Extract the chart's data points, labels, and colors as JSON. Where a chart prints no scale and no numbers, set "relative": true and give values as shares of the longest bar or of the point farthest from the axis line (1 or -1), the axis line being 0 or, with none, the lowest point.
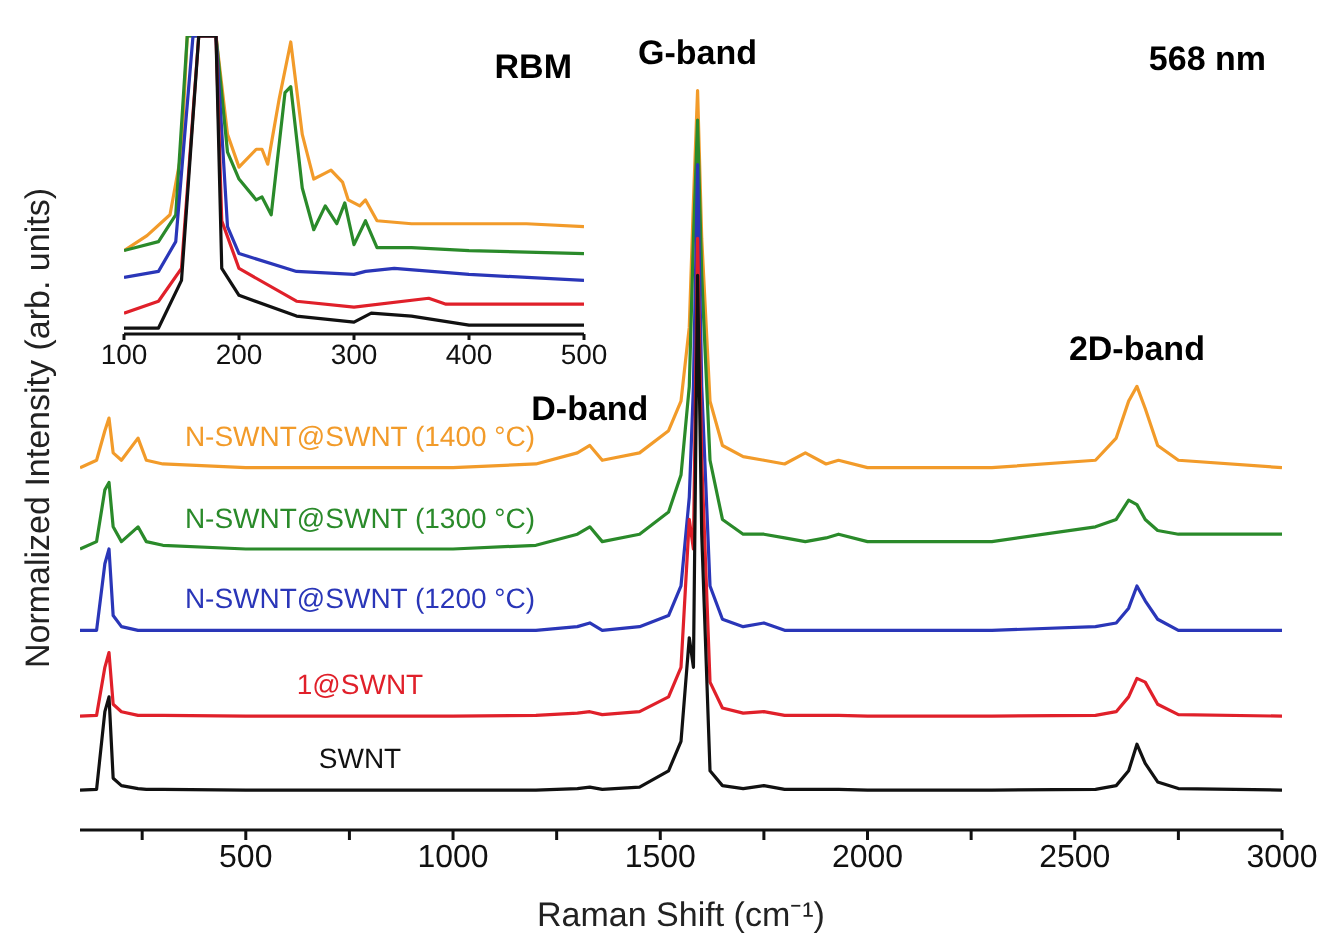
{
  "chart_data": [
    {
      "type": "line",
      "relative": true,
      "xlabel": "Raman Shift (cm⁻¹)",
      "ylabel": "Normalized Intensity (arb. units)",
      "xlim": [
        100,
        3000
      ],
      "xticks": [
        {
          "value": 250,
          "label": null
        },
        500,
        {
          "value": 750,
          "label": null
        },
        1000,
        {
          "value": 1250,
          "label": null
        },
        1500,
        {
          "value": 1750,
          "label": null
        },
        2000,
        {
          "value": 2250,
          "label": null
        },
        2500,
        {
          "value": 2750,
          "label": null
        },
        3000
      ],
      "grid": false,
      "legend": false,
      "annotations": [
        {
          "text": "G-band",
          "x": 1590,
          "y": 1.0
        },
        {
          "text": "D-band",
          "x": 1330,
          "y": 0.52
        },
        {
          "text": "2D-band",
          "x": 2650,
          "y": 0.6
        },
        "568 nm"
      ],
      "x": [
        100,
        140,
        160,
        170,
        180,
        200,
        240,
        260,
        300,
        500,
        1000,
        1200,
        1300,
        1330,
        1360,
        1450,
        1520,
        1550,
        1570,
        1580,
        1590,
        1600,
        1620,
        1650,
        1700,
        1750,
        1800,
        1850,
        1900,
        1930,
        2000,
        2300,
        2550,
        2600,
        2630,
        2650,
        2670,
        2700,
        2750,
        3000
      ],
      "series": [
        {
          "name": "N-SWNT@SWNT (1400 °C)",
          "color": "#f29b2a",
          "values": [
            0.49,
            0.5,
            0.54,
            0.557,
            0.51,
            0.5,
            0.53,
            0.5,
            0.495,
            0.49,
            0.49,
            0.495,
            0.51,
            0.52,
            0.5,
            0.51,
            0.54,
            0.58,
            0.68,
            0.85,
            1.0,
            0.8,
            0.58,
            0.52,
            0.505,
            0.5,
            0.495,
            0.51,
            0.495,
            0.5,
            0.49,
            0.49,
            0.5,
            0.53,
            0.58,
            0.6,
            0.57,
            0.52,
            0.5,
            0.49
          ]
        },
        {
          "name": "N-SWNT@SWNT (1300 °C)",
          "color": "#2a8a2a",
          "values": [
            0.38,
            0.39,
            0.46,
            0.47,
            0.41,
            0.39,
            0.41,
            0.39,
            0.385,
            0.38,
            0.38,
            0.385,
            0.4,
            0.41,
            0.39,
            0.4,
            0.43,
            0.48,
            0.6,
            0.8,
            0.96,
            0.75,
            0.5,
            0.42,
            0.4,
            0.4,
            0.395,
            0.39,
            0.395,
            0.4,
            0.39,
            0.39,
            0.41,
            0.42,
            0.446,
            0.44,
            0.42,
            0.405,
            0.4,
            0.4
          ]
        },
        {
          "name": "N-SWNT@SWNT (1200 °C)",
          "color": "#2a36b8",
          "values": [
            0.27,
            0.27,
            0.36,
            0.38,
            0.29,
            0.275,
            0.27,
            0.27,
            0.27,
            0.27,
            0.27,
            0.27,
            0.275,
            0.28,
            0.27,
            0.275,
            0.29,
            0.33,
            0.45,
            0.6,
            0.9,
            0.6,
            0.33,
            0.285,
            0.275,
            0.28,
            0.27,
            0.27,
            0.27,
            0.27,
            0.27,
            0.27,
            0.275,
            0.28,
            0.3,
            0.33,
            0.31,
            0.285,
            0.27,
            0.27
          ]
        },
        {
          "name": "1@SWNT",
          "color": "#e0202a",
          "values": [
            0.154,
            0.155,
            0.22,
            0.24,
            0.17,
            0.16,
            0.155,
            0.155,
            0.155,
            0.154,
            0.154,
            0.155,
            0.158,
            0.16,
            0.156,
            0.16,
            0.18,
            0.22,
            0.42,
            0.38,
            0.8,
            0.5,
            0.2,
            0.165,
            0.158,
            0.16,
            0.155,
            0.155,
            0.155,
            0.155,
            0.154,
            0.154,
            0.155,
            0.16,
            0.18,
            0.205,
            0.2,
            0.17,
            0.156,
            0.154
          ]
        },
        {
          "name": "SWNT",
          "color": "#111111",
          "values": [
            0.054,
            0.055,
            0.16,
            0.18,
            0.07,
            0.06,
            0.056,
            0.055,
            0.055,
            0.054,
            0.054,
            0.054,
            0.056,
            0.058,
            0.055,
            0.058,
            0.08,
            0.12,
            0.26,
            0.22,
            0.75,
            0.4,
            0.08,
            0.06,
            0.056,
            0.06,
            0.055,
            0.055,
            0.055,
            0.055,
            0.054,
            0.054,
            0.055,
            0.06,
            0.08,
            0.116,
            0.09,
            0.065,
            0.056,
            0.054
          ]
        }
      ]
    },
    {
      "type": "line",
      "relative": true,
      "xlim": [
        100,
        500
      ],
      "xticks": [
        100,
        200,
        300,
        400,
        500
      ],
      "grid": false,
      "legend": false,
      "annotations": [
        "RBM"
      ],
      "series": [
        {
          "color": "#f29b2a",
          "x": [
            100,
            120,
            140,
            150,
            155,
            180,
            190,
            200,
            215,
            220,
            225,
            235,
            245,
            255,
            265,
            275,
            280,
            290,
            295,
            305,
            310,
            320,
            350,
            400,
            450,
            500
          ],
          "values": [
            0.28,
            0.33,
            0.4,
            0.61,
            1.0,
            1.0,
            0.67,
            0.56,
            0.62,
            0.62,
            0.57,
            0.79,
            0.98,
            0.67,
            0.52,
            0.54,
            0.55,
            0.51,
            0.45,
            0.43,
            0.45,
            0.38,
            0.37,
            0.37,
            0.37,
            0.36
          ]
        },
        {
          "color": "#2a8a2a",
          "x": [
            100,
            130,
            145,
            155,
            180,
            190,
            200,
            215,
            220,
            228,
            240,
            245,
            255,
            265,
            275,
            285,
            292,
            300,
            310,
            320,
            350,
            400,
            500
          ],
          "values": [
            0.28,
            0.31,
            0.4,
            1.0,
            1.0,
            0.61,
            0.52,
            0.45,
            0.46,
            0.4,
            0.81,
            0.83,
            0.49,
            0.35,
            0.43,
            0.37,
            0.44,
            0.3,
            0.38,
            0.29,
            0.29,
            0.28,
            0.27
          ]
        },
        {
          "color": "#2a36b8",
          "x": [
            100,
            130,
            145,
            160,
            180,
            190,
            200,
            250,
            300,
            310,
            335,
            400,
            500
          ],
          "values": [
            0.19,
            0.21,
            0.31,
            1.0,
            1.0,
            0.36,
            0.27,
            0.21,
            0.2,
            0.21,
            0.22,
            0.2,
            0.18
          ]
        },
        {
          "color": "#e0202a",
          "x": [
            100,
            130,
            150,
            165,
            180,
            185,
            200,
            250,
            300,
            365,
            380,
            500
          ],
          "values": [
            0.07,
            0.11,
            0.22,
            1.0,
            1.0,
            0.38,
            0.22,
            0.11,
            0.09,
            0.12,
            0.1,
            0.1
          ]
        },
        {
          "color": "#111111",
          "x": [
            100,
            130,
            150,
            165,
            180,
            185,
            200,
            250,
            300,
            315,
            350,
            400,
            500
          ],
          "values": [
            0.02,
            0.02,
            0.18,
            1.0,
            1.0,
            0.22,
            0.13,
            0.06,
            0.04,
            0.07,
            0.06,
            0.03,
            0.03
          ]
        }
      ]
    }
  ]
}
